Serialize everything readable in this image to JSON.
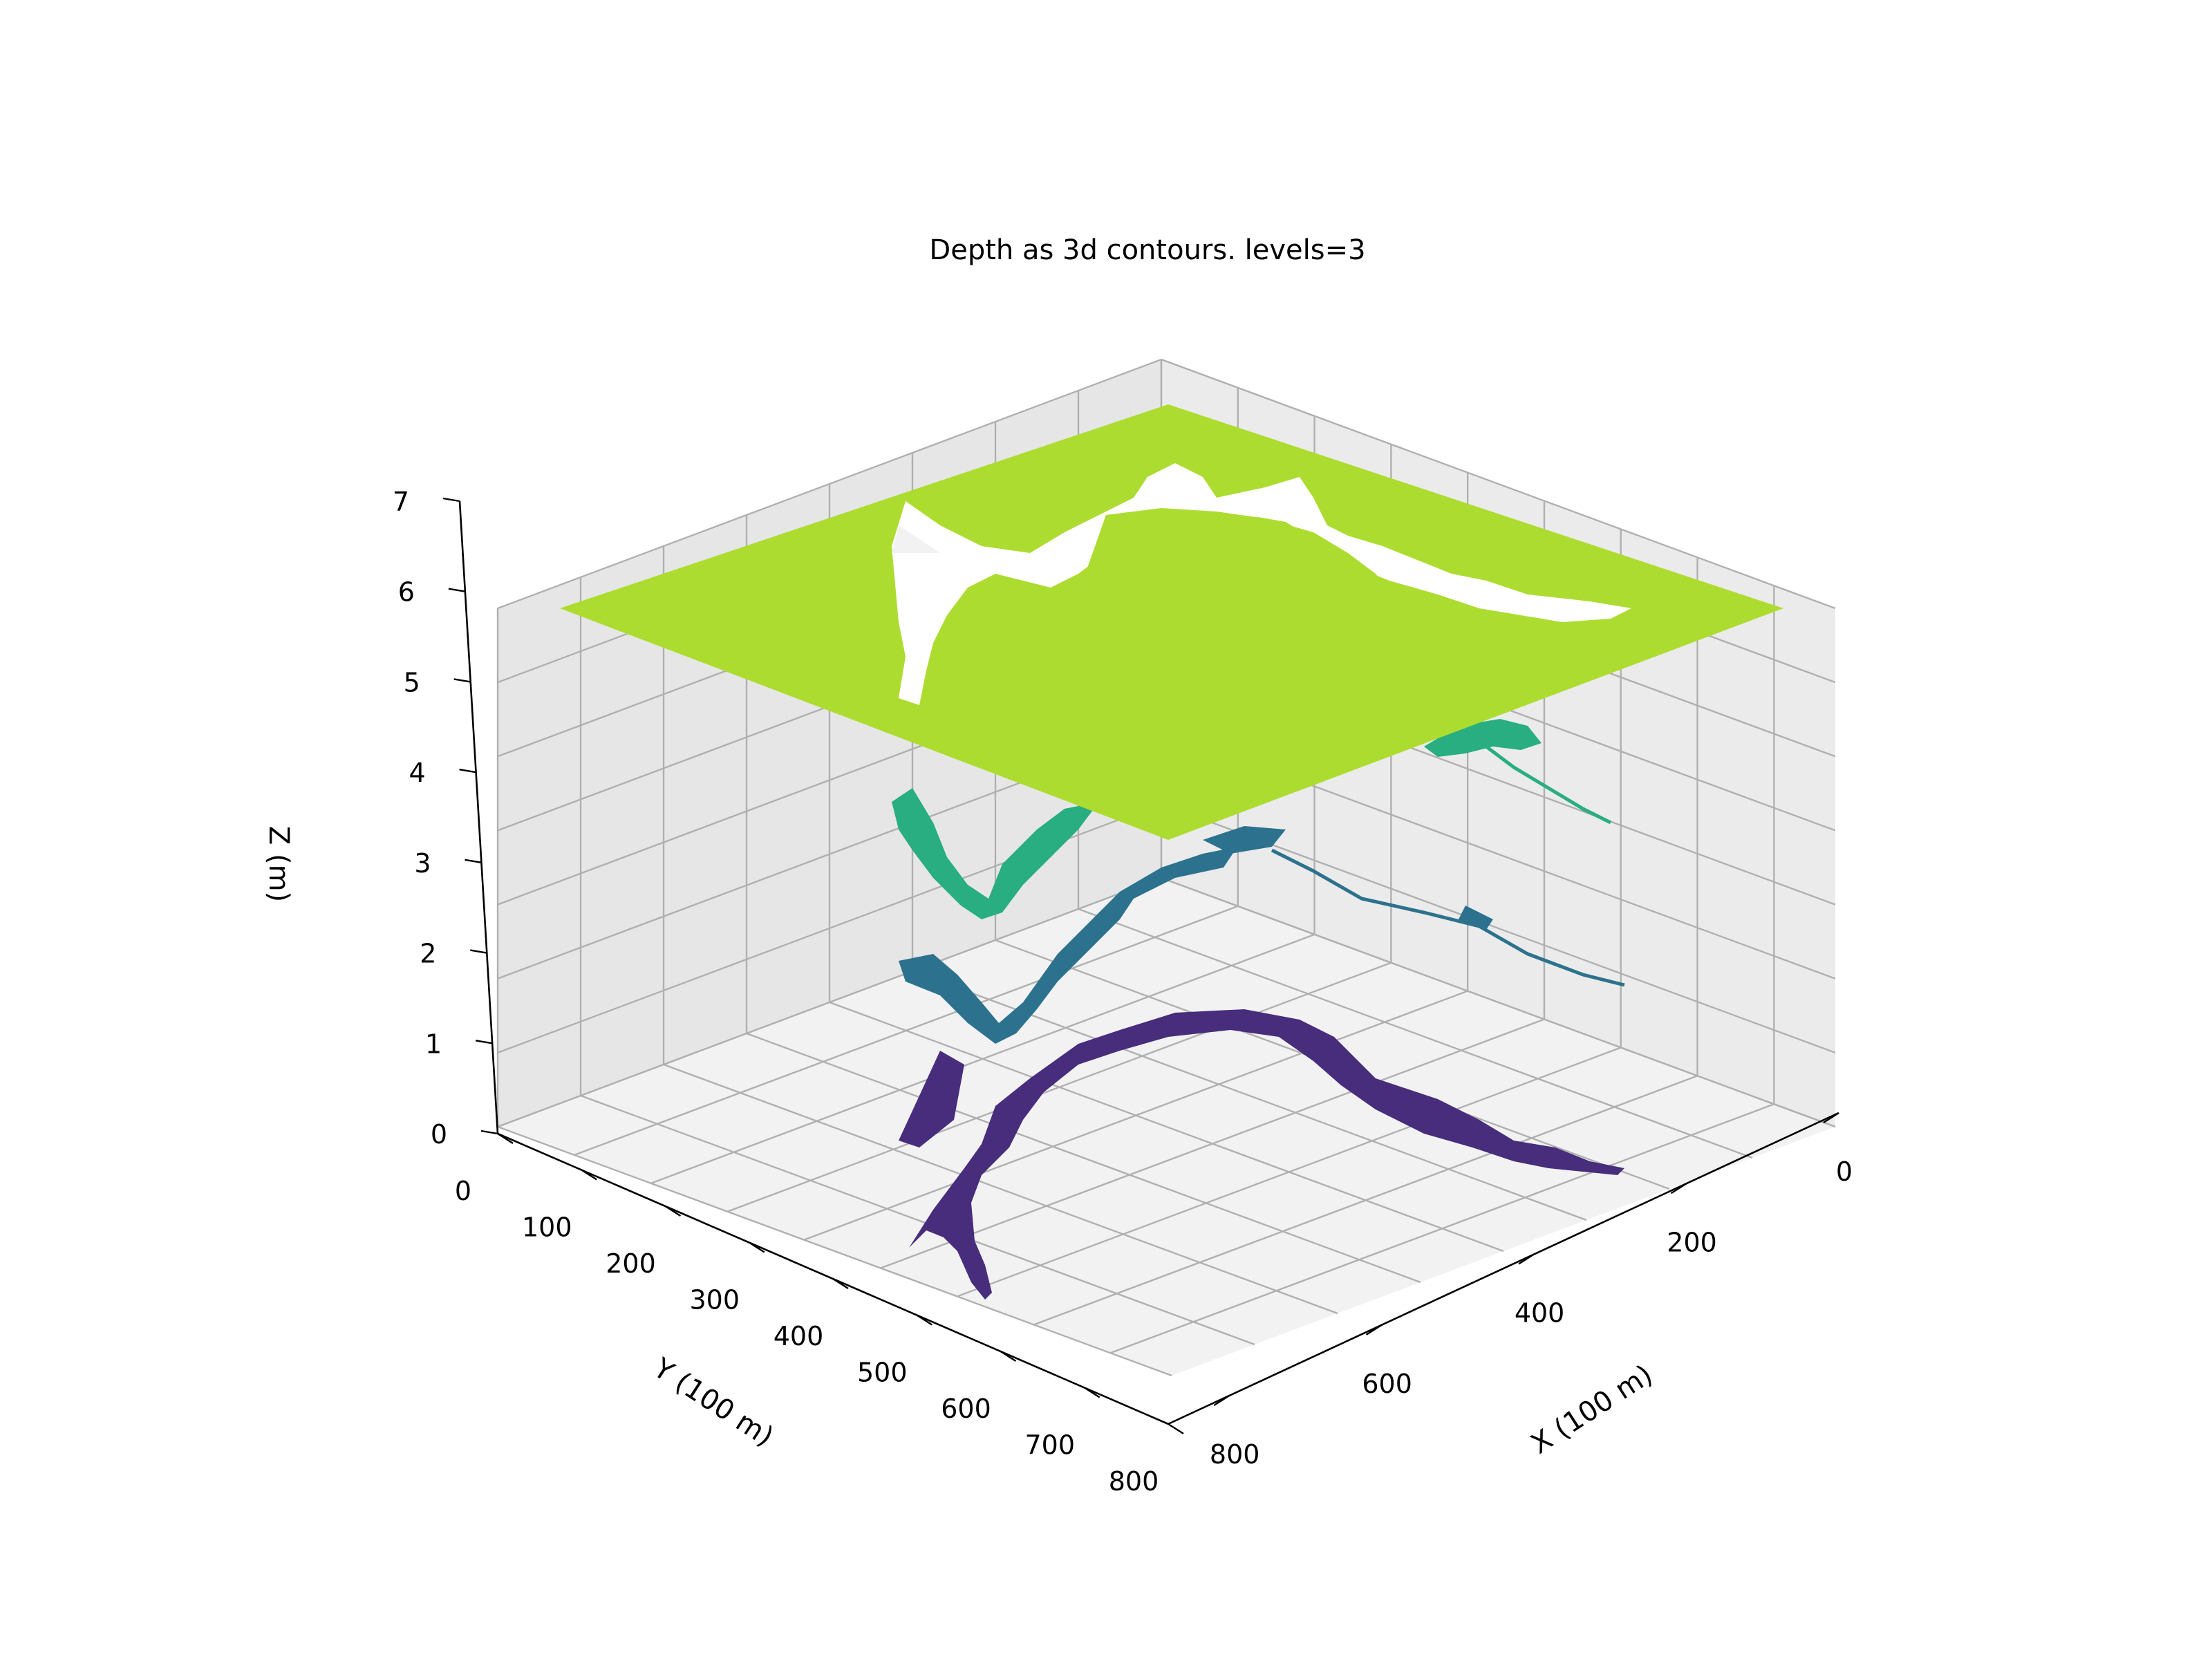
{
  "chart_data": {
    "type": "3d-contour",
    "title": "Depth as 3d contours. levels=3",
    "xlabel": "X (100 m)",
    "ylabel": "Y (100 m)",
    "zlabel": "Z (m)",
    "xlim": [
      0,
      880
    ],
    "ylim": [
      0,
      800
    ],
    "zlim": [
      0,
      7
    ],
    "x_ticks": [
      "0",
      "200",
      "400",
      "600",
      "800"
    ],
    "y_ticks": [
      "0",
      "100",
      "200",
      "300",
      "400",
      "500",
      "600",
      "700",
      "800"
    ],
    "z_ticks": [
      "0",
      "1",
      "2",
      "3",
      "4",
      "5",
      "6",
      "7"
    ],
    "levels": [
      {
        "z": 0.0,
        "color": "#472d7b"
      },
      {
        "z": 2.3,
        "color": "#2c728e"
      },
      {
        "z": 4.5,
        "color": "#28ae80"
      },
      {
        "z": 7.0,
        "color": "#addc30"
      }
    ],
    "grid": true,
    "pane_color": "#f2f2f2",
    "grid_color": "#b0b0b0"
  }
}
